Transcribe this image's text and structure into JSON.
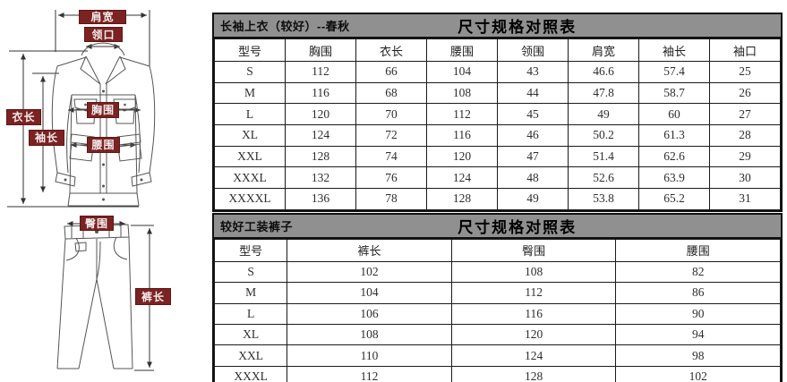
{
  "colors": {
    "label_bg": "#7B2222",
    "label_text": "#F4ECEC",
    "band_bg": "#909090",
    "table_border": "#111111",
    "line_art": "#555555",
    "dimension_line": "#333333"
  },
  "diagram": {
    "shoulder_width": "肩宽",
    "collar": "领口",
    "coat_length": "衣长",
    "sleeve_length": "袖长",
    "chest": "胸围",
    "waist": "腰围",
    "hip": "臀围",
    "pants_length": "裤长"
  },
  "jacket_table": {
    "title_left": "长袖上衣（较好）--春秋",
    "title_main": "尺寸规格对照表",
    "columns": [
      "型号",
      "胸围",
      "衣长",
      "腰围",
      "领围",
      "肩宽",
      "袖长",
      "袖口"
    ],
    "rows": [
      [
        "S",
        "112",
        "66",
        "104",
        "43",
        "46.6",
        "57.4",
        "25"
      ],
      [
        "M",
        "116",
        "68",
        "108",
        "44",
        "47.8",
        "58.7",
        "26"
      ],
      [
        "L",
        "120",
        "70",
        "112",
        "45",
        "49",
        "60",
        "27"
      ],
      [
        "XL",
        "124",
        "72",
        "116",
        "46",
        "50.2",
        "61.3",
        "28"
      ],
      [
        "XXL",
        "128",
        "74",
        "120",
        "47",
        "51.4",
        "62.6",
        "29"
      ],
      [
        "XXXL",
        "132",
        "76",
        "124",
        "48",
        "52.6",
        "63.9",
        "30"
      ],
      [
        "XXXXL",
        "136",
        "78",
        "128",
        "49",
        "53.8",
        "65.2",
        "31"
      ]
    ]
  },
  "pants_table": {
    "title_left": "较好工装裤子",
    "title_main": "尺寸规格对照表",
    "columns": [
      "型号",
      "裤长",
      "臀围",
      "腰围"
    ],
    "rows": [
      [
        "S",
        "102",
        "108",
        "82"
      ],
      [
        "M",
        "104",
        "112",
        "86"
      ],
      [
        "L",
        "106",
        "116",
        "90"
      ],
      [
        "XL",
        "108",
        "120",
        "94"
      ],
      [
        "XXL",
        "110",
        "124",
        "98"
      ],
      [
        "XXXL",
        "112",
        "128",
        "102"
      ]
    ]
  }
}
